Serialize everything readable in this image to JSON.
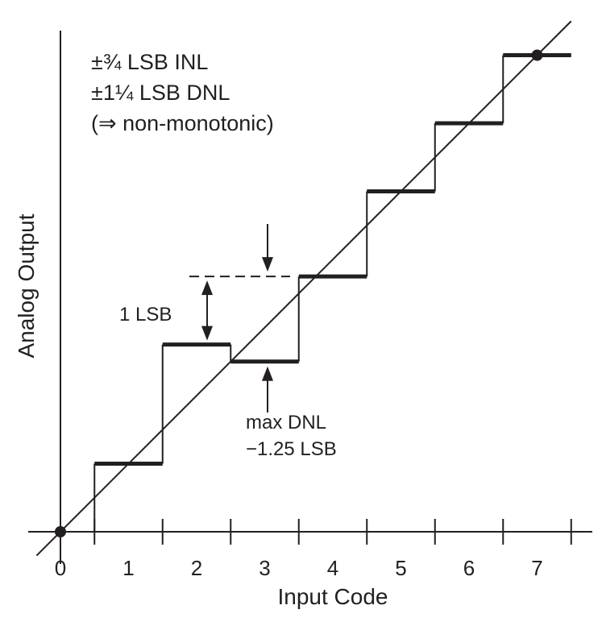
{
  "chart_data": {
    "type": "line",
    "x_axis": {
      "title": "Input Code",
      "tick_labels": [
        "0",
        "1",
        "2",
        "3",
        "4",
        "5",
        "6",
        "7"
      ]
    },
    "y_axis": {
      "title": "Analog Output"
    },
    "notes": [
      "±¾ LSB INL",
      "±1¼ LSB DNL",
      "(⇒ non-monotonic)"
    ],
    "annotations": {
      "lsb": "1 LSB",
      "dnl_line1": "max DNL",
      "dnl_line2": "−1.25 LSB"
    },
    "ideal_line": {
      "x": [
        -0.35,
        7.5
      ],
      "y": [
        -0.35,
        7.5
      ]
    },
    "staircase_outputs": [
      {
        "code": 0,
        "output": 0
      },
      {
        "code": 1,
        "output": 1
      },
      {
        "code": 2,
        "output": 2.75
      },
      {
        "code": 3,
        "output": 2.5
      },
      {
        "code": 4,
        "output": 3.75
      },
      {
        "code": 5,
        "output": 5
      },
      {
        "code": 6,
        "output": 6
      },
      {
        "code": 7,
        "output": 7
      }
    ],
    "xlim": [
      -0.5,
      7.5
    ],
    "grid": false
  },
  "colors": {
    "ink": "#231f20",
    "background": "#ffffff"
  }
}
